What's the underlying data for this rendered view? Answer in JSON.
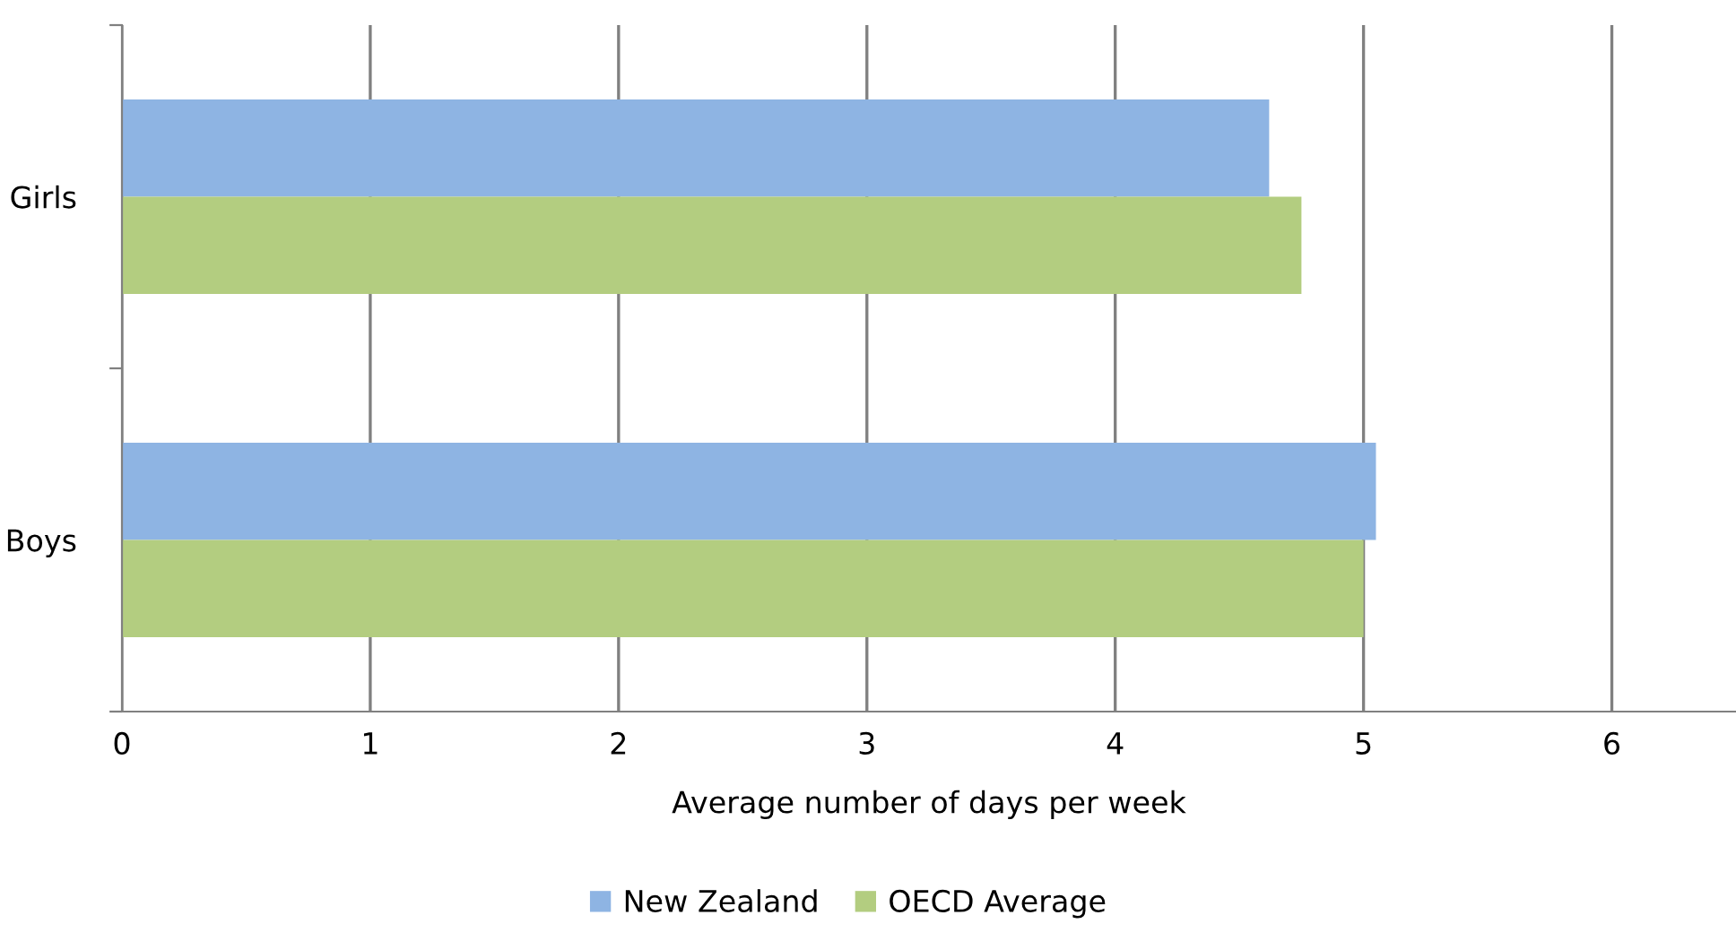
{
  "chart_data": {
    "type": "bar",
    "orientation": "horizontal",
    "categories": [
      "Girls",
      "Boys"
    ],
    "series": [
      {
        "name": "New Zealand",
        "color": "#8eb4e3",
        "values": [
          4.62,
          5.05
        ]
      },
      {
        "name": "OECD Average",
        "color": "#b3cd80",
        "values": [
          4.75,
          5.0
        ]
      }
    ],
    "xlabel": "Average number of days per week",
    "xlim": [
      0,
      6.5
    ],
    "xticks": [
      0,
      1,
      2,
      3,
      4,
      5,
      6
    ],
    "grid": "x",
    "legend": "bottom"
  }
}
